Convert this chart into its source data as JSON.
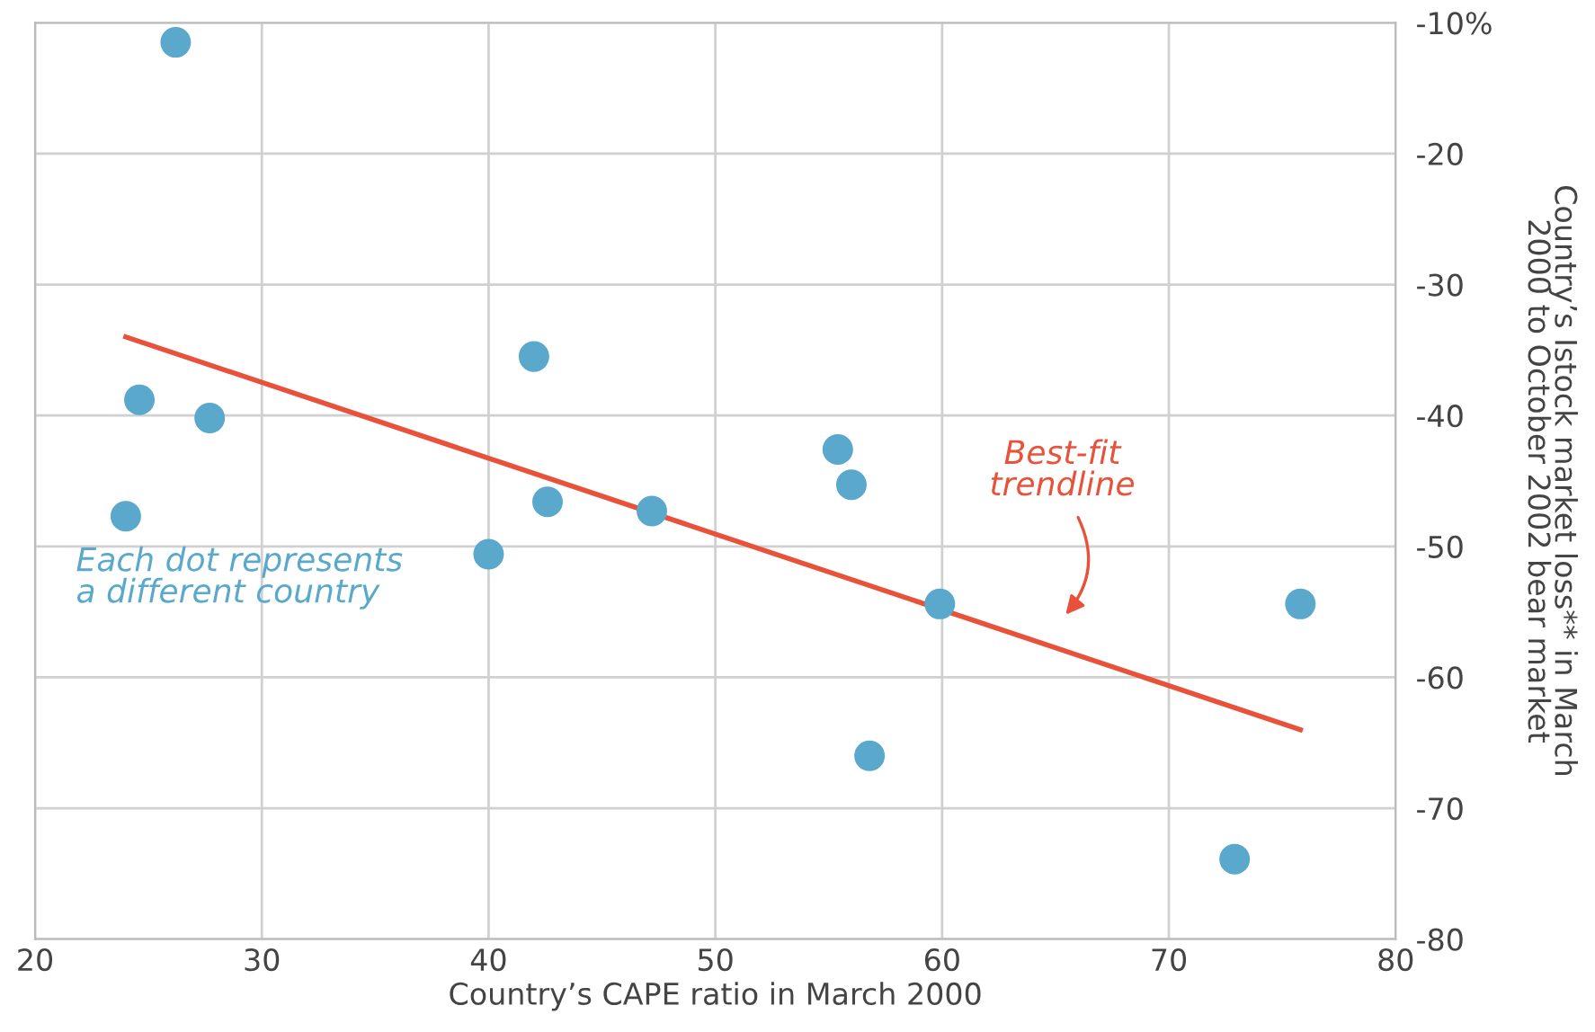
{
  "chart_data": {
    "type": "scatter",
    "xlabel": "Country’s CAPE ratio in March 2000",
    "ylabel": "Country’s Istock market loss** in March\n2000 to October 2002 bear market",
    "xlim": [
      20,
      80
    ],
    "xticks": [
      20,
      30,
      40,
      50,
      60,
      70,
      80
    ],
    "ylim": [
      -80,
      -10
    ],
    "yticks": [
      {
        "value": -10,
        "label": "-10%"
      },
      -20,
      -30,
      -40,
      -50,
      -60,
      -70,
      -80
    ],
    "grid": true,
    "marker": "circle",
    "series": [
      {
        "color": "#5aa8cc",
        "x": [
          26.2,
          24.6,
          27.7,
          24.0,
          42.0,
          42.6,
          47.2,
          40.0,
          55.4,
          56.0,
          59.9,
          56.8,
          72.9,
          75.8
        ],
        "values": [
          -11.5,
          -38.8,
          -40.2,
          -47.7,
          -35.5,
          -46.6,
          -47.3,
          -50.6,
          -42.6,
          -45.3,
          -54.4,
          -66.0,
          -73.9,
          -54.4
        ]
      },
      {
        "type": "line",
        "color": "#e8523a",
        "marker": "none",
        "x": [
          24.0,
          75.8
        ],
        "values": [
          -34.0,
          -64.0
        ]
      }
    ],
    "annotations": [
      "Best-fit\ntrendline",
      "Each dot represents\na different country"
    ]
  }
}
